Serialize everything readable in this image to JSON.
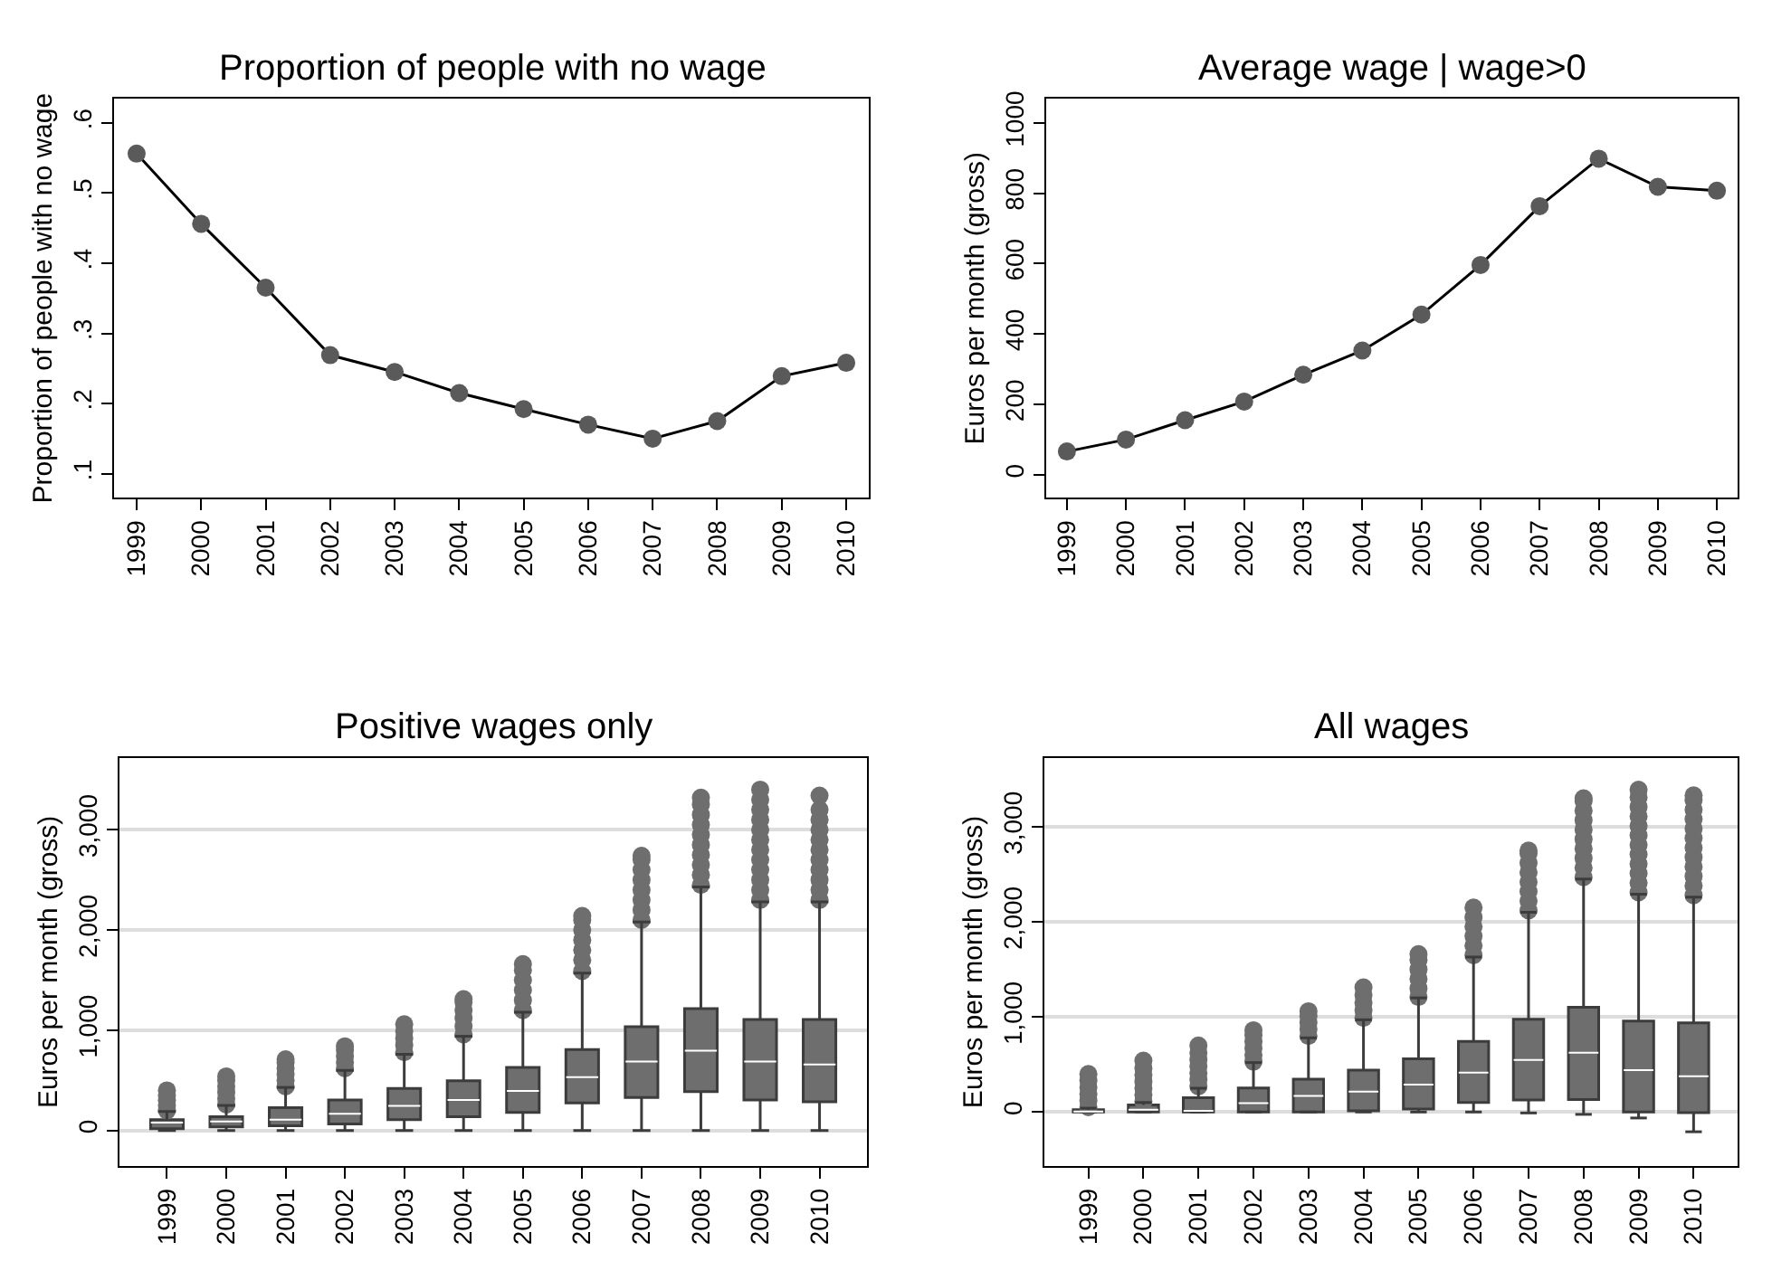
{
  "chart_data": [
    {
      "type": "line",
      "title": "Proportion of people with no wage",
      "ylabel": "Proportion of people with no wage",
      "categories": [
        "1999",
        "2000",
        "2001",
        "2002",
        "2003",
        "2004",
        "2005",
        "2006",
        "2007",
        "2008",
        "2009",
        "2010"
      ],
      "series": [
        {
          "color": "#5a5a5a",
          "values": [
            0.556,
            0.456,
            0.365,
            0.269,
            0.245,
            0.215,
            0.192,
            0.17,
            0.15,
            0.175,
            0.239,
            0.258
          ]
        }
      ],
      "ylim": [
        0.066,
        0.634
      ],
      "yticks": [
        {
          "value": 0.1,
          "label": ".1"
        },
        {
          "value": 0.2,
          "label": ".2"
        },
        {
          "value": 0.3,
          "label": ".3"
        },
        {
          "value": 0.4,
          "label": ".4"
        },
        {
          "value": 0.5,
          "label": ".5"
        },
        {
          "value": 0.6,
          "label": ".6"
        }
      ],
      "marker": "circle",
      "line_style": "solid"
    },
    {
      "type": "line",
      "title": "Average wage | wage>0",
      "ylabel": "Euros per month (gross)",
      "categories": [
        "1999",
        "2000",
        "2001",
        "2002",
        "2003",
        "2004",
        "2005",
        "2006",
        "2007",
        "2008",
        "2009",
        "2010"
      ],
      "series": [
        {
          "color": "#5a5a5a",
          "values": [
            66,
            100,
            155,
            208,
            284,
            353,
            455,
            596,
            763,
            898,
            818,
            807
          ]
        }
      ],
      "ylim": [
        -65,
        1068
      ],
      "yticks": [
        0,
        200,
        400,
        600,
        800,
        1000
      ],
      "marker": "circle",
      "line_style": "solid"
    },
    {
      "type": "box",
      "title": "Positive wages only",
      "ylabel": "Euros per month (gross)",
      "categories": [
        "1999",
        "2000",
        "2001",
        "2002",
        "2003",
        "2004",
        "2005",
        "2006",
        "2007",
        "2008",
        "2009",
        "2010"
      ],
      "series": [
        {
          "color": "#6e6e6e",
          "boxes": [
            {
              "low": 0,
              "q1": 18,
              "median": 78,
              "q3": 108,
              "high": 190,
              "outliers": [
                200,
                250,
                300,
                350,
                400
              ]
            },
            {
              "low": 0,
              "q1": 36,
              "median": 90,
              "q3": 137,
              "high": 250,
              "outliers": [
                260,
                320,
                380,
                440,
                500,
                540
              ]
            },
            {
              "low": 0,
              "q1": 48,
              "median": 108,
              "q3": 227,
              "high": 430,
              "outliers": [
                440,
                500,
                560,
                620,
                680,
                710
              ]
            },
            {
              "low": 0,
              "q1": 66,
              "median": 168,
              "q3": 305,
              "high": 600,
              "outliers": [
                620,
                680,
                740,
                800,
                840
              ]
            },
            {
              "low": 0,
              "q1": 108,
              "median": 246,
              "q3": 419,
              "high": 760,
              "outliers": [
                780,
                850,
                920,
                990,
                1060
              ]
            },
            {
              "low": 0,
              "q1": 138,
              "median": 305,
              "q3": 497,
              "high": 940,
              "outliers": [
                960,
                1040,
                1120,
                1200,
                1280,
                1310
              ]
            },
            {
              "low": 0,
              "q1": 180,
              "median": 395,
              "q3": 629,
              "high": 1180,
              "outliers": [
                1200,
                1300,
                1400,
                1500,
                1600,
                1660
              ]
            },
            {
              "low": 0,
              "q1": 275,
              "median": 533,
              "q3": 808,
              "high": 1570,
              "outliers": [
                1590,
                1700,
                1800,
                1900,
                2000,
                2100,
                2140
              ]
            },
            {
              "low": 0,
              "q1": 329,
              "median": 689,
              "q3": 1036,
              "high": 2080,
              "outliers": [
                2100,
                2200,
                2300,
                2400,
                2500,
                2600,
                2700,
                2740
              ]
            },
            {
              "low": 0,
              "q1": 389,
              "median": 796,
              "q3": 1216,
              "high": 2430,
              "outliers": [
                2450,
                2550,
                2650,
                2750,
                2850,
                2950,
                3050,
                3150,
                3250,
                3320
              ]
            },
            {
              "low": 0,
              "q1": 305,
              "median": 689,
              "q3": 1108,
              "high": 2280,
              "outliers": [
                2300,
                2400,
                2500,
                2600,
                2700,
                2800,
                2900,
                3000,
                3100,
                3200,
                3300,
                3400
              ]
            },
            {
              "low": 0,
              "q1": 287,
              "median": 659,
              "q3": 1108,
              "high": 2280,
              "outliers": [
                2300,
                2400,
                2500,
                2600,
                2700,
                2800,
                2900,
                3000,
                3100,
                3200,
                3340
              ]
            }
          ]
        }
      ],
      "ylim": [
        -352,
        3715
      ],
      "yticks": [
        0,
        {
          "value": 1000,
          "label": "1,000"
        },
        {
          "value": 2000,
          "label": "2,000"
        },
        {
          "value": 3000,
          "label": "3,000"
        }
      ],
      "grid": "y"
    },
    {
      "type": "box",
      "title": "All wages",
      "ylabel": "Euros per month (gross)",
      "categories": [
        "1999",
        "2000",
        "2001",
        "2002",
        "2003",
        "2004",
        "2005",
        "2006",
        "2007",
        "2008",
        "2009",
        "2010"
      ],
      "series": [
        {
          "color": "#6e6e6e",
          "boxes": [
            {
              "low": 0,
              "q1": 0,
              "median": 5,
              "q3": 25,
              "high": 40,
              "outliers": [
                50,
                120,
                190,
                260,
                330,
                400
              ]
            },
            {
              "low": 0,
              "q1": 0,
              "median": 25,
              "q3": 75,
              "high": 100,
              "outliers": [
                110,
                180,
                250,
                320,
                390,
                460,
                540
              ]
            },
            {
              "low": 0,
              "q1": 0,
              "median": 13,
              "q3": 151,
              "high": 250,
              "outliers": [
                270,
                340,
                410,
                480,
                550,
                620,
                700
              ]
            },
            {
              "low": 0,
              "q1": 0,
              "median": 94,
              "q3": 252,
              "high": 520,
              "outliers": [
                530,
                600,
                670,
                740,
                810,
                860
              ]
            },
            {
              "low": 0,
              "q1": 0,
              "median": 170,
              "q3": 346,
              "high": 780,
              "outliers": [
                800,
                870,
                940,
                1010,
                1060
              ]
            },
            {
              "low": 0,
              "q1": 13,
              "median": 214,
              "q3": 440,
              "high": 970,
              "outliers": [
                990,
                1070,
                1150,
                1230,
                1310
              ]
            },
            {
              "low": 0,
              "q1": 31,
              "median": 289,
              "q3": 560,
              "high": 1200,
              "outliers": [
                1210,
                1300,
                1400,
                1500,
                1600,
                1660
              ]
            },
            {
              "low": 0,
              "q1": 101,
              "median": 415,
              "q3": 742,
              "high": 1630,
              "outliers": [
                1650,
                1750,
                1850,
                1950,
                2050,
                2150
              ]
            },
            {
              "low": -10,
              "q1": 126,
              "median": 547,
              "q3": 975,
              "high": 2100,
              "outliers": [
                2120,
                2220,
                2320,
                2420,
                2520,
                2620,
                2720,
                2750
              ]
            },
            {
              "low": -25,
              "q1": 132,
              "median": 623,
              "q3": 1101,
              "high": 2450,
              "outliers": [
                2470,
                2570,
                2670,
                2770,
                2870,
                2970,
                3070,
                3170,
                3270,
                3300
              ]
            },
            {
              "low": -63,
              "q1": 0,
              "median": 440,
              "q3": 956,
              "high": 2290,
              "outliers": [
                2310,
                2410,
                2510,
                2610,
                2710,
                2810,
                2910,
                3010,
                3110,
                3210,
                3310,
                3390
              ]
            },
            {
              "low": -208,
              "q1": -6,
              "median": 377,
              "q3": 937,
              "high": 2260,
              "outliers": [
                2280,
                2380,
                2480,
                2580,
                2680,
                2780,
                2880,
                2980,
                3080,
                3180,
                3280,
                3330
              ]
            }
          ]
        }
      ],
      "ylim": [
        -566,
        3723
      ],
      "yticks": [
        0,
        {
          "value": 1000,
          "label": "1,000"
        },
        {
          "value": 2000,
          "label": "2,000"
        },
        {
          "value": 3000,
          "label": "3,000"
        }
      ],
      "grid": "y"
    }
  ]
}
